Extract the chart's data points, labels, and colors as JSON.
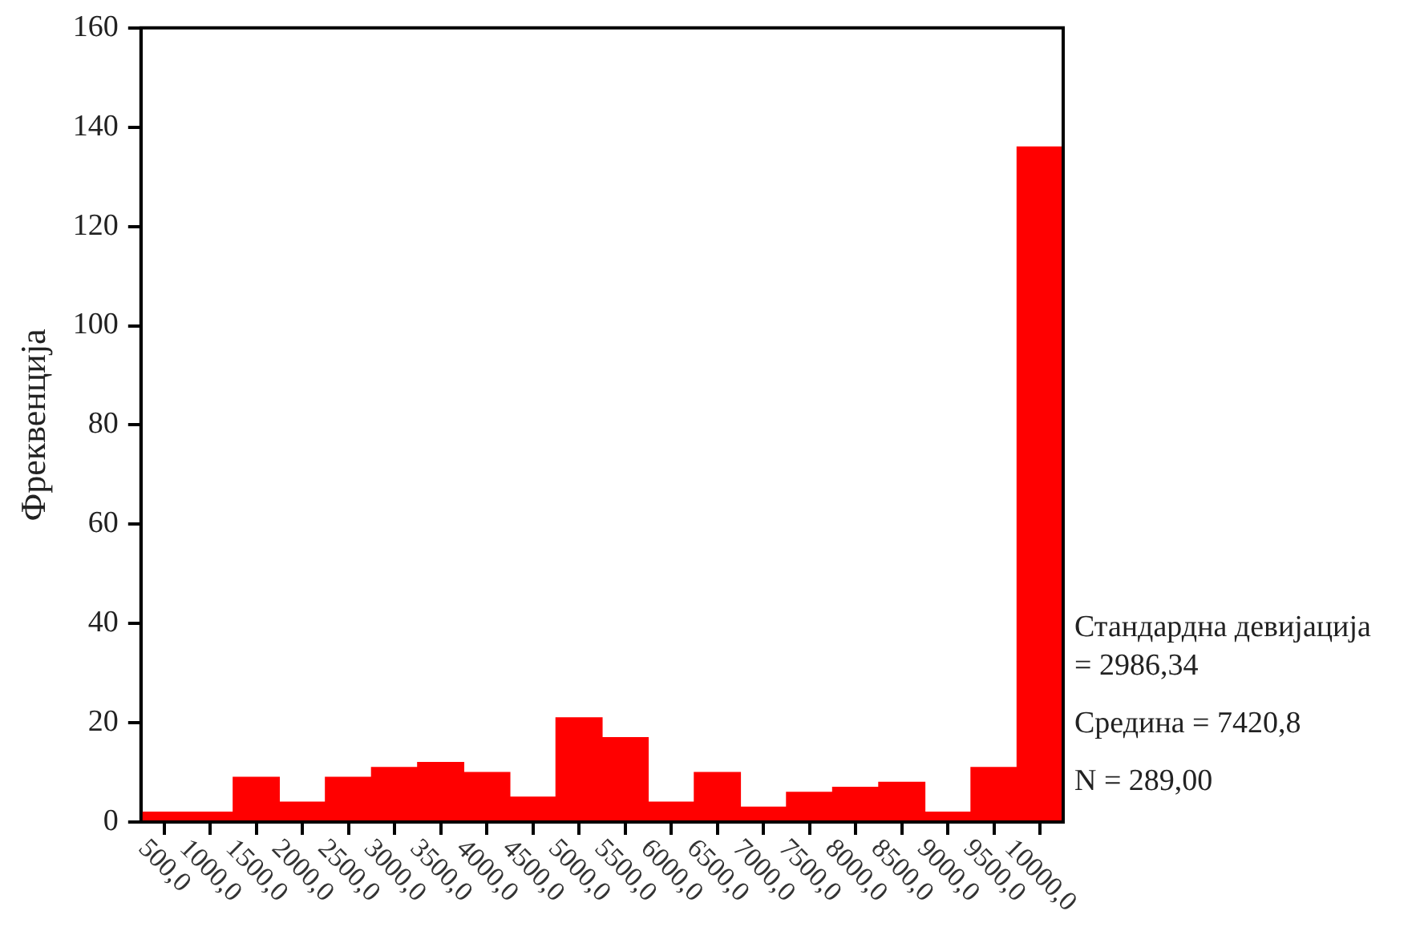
{
  "chart_data": {
    "type": "histogram",
    "ylabel": "Фреквенција",
    "bins": [
      250,
      750,
      1250,
      1750,
      2250,
      2750,
      3250,
      3750,
      4250,
      4750,
      5250,
      5750,
      6250,
      6750,
      7250,
      7750,
      8250,
      8750,
      9250,
      9750,
      10250
    ],
    "values": [
      2,
      2,
      9,
      4,
      9,
      11,
      12,
      10,
      5,
      21,
      17,
      4,
      10,
      3,
      6,
      7,
      8,
      2,
      11,
      136
    ],
    "color": "#ff0000",
    "xlim": [
      250,
      10250
    ],
    "xticks": [
      {
        "value": 500,
        "label": "500,0"
      },
      {
        "value": 1000,
        "label": "1000,0"
      },
      {
        "value": 1500,
        "label": "1500,0"
      },
      {
        "value": 2000,
        "label": "2000,0"
      },
      {
        "value": 2500,
        "label": "2500,0"
      },
      {
        "value": 3000,
        "label": "3000,0"
      },
      {
        "value": 3500,
        "label": "3500,0"
      },
      {
        "value": 4000,
        "label": "4000,0"
      },
      {
        "value": 4500,
        "label": "4500,0"
      },
      {
        "value": 5000,
        "label": "5000,0"
      },
      {
        "value": 5500,
        "label": "5500,0"
      },
      {
        "value": 6000,
        "label": "6000,0"
      },
      {
        "value": 6500,
        "label": "6500,0"
      },
      {
        "value": 7000,
        "label": "7000,0"
      },
      {
        "value": 7500,
        "label": "7500,0"
      },
      {
        "value": 8000,
        "label": "8000,0"
      },
      {
        "value": 8500,
        "label": "8500,0"
      },
      {
        "value": 9000,
        "label": "9000,0"
      },
      {
        "value": 9500,
        "label": "9500,0"
      },
      {
        "value": 10000,
        "label": "10000,0"
      }
    ],
    "ylim": [
      0,
      160
    ],
    "yticks": [
      0,
      20,
      40,
      60,
      80,
      100,
      120,
      140,
      160
    ],
    "annotations": [
      "Стандардна девијација = 2986,34",
      "Средина = 7420,8",
      "N = 289,00"
    ],
    "grid": false,
    "legend": false
  }
}
